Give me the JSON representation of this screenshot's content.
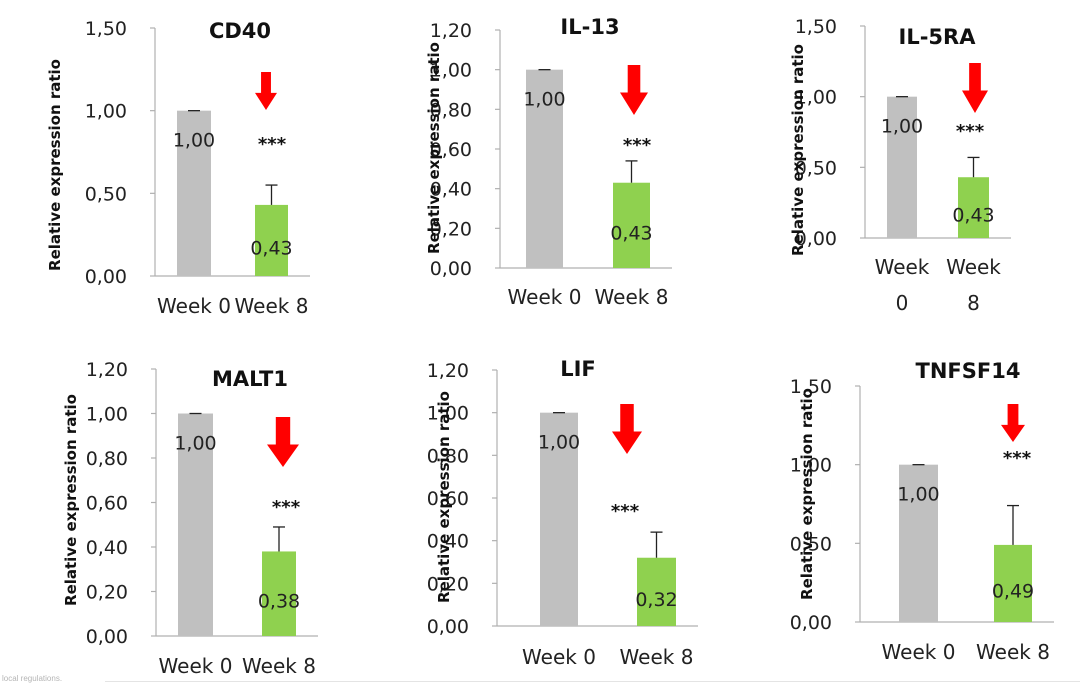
{
  "footer_text": "local regulations.",
  "colors": {
    "baseline_bar": "#c0c0c0",
    "week8_bar": "#8fd14f",
    "arrow": "#ff0000",
    "axis": "#b0b0b0"
  },
  "chart_data": [
    {
      "type": "bar",
      "title": "CD40",
      "ylabel": "Relative expression ratio",
      "categories": [
        [
          "Week 0"
        ],
        [
          "Week 8"
        ]
      ],
      "values": [
        1.0,
        0.43
      ],
      "value_labels": [
        "1,00",
        "0,43"
      ],
      "error": [
        0,
        0.12
      ],
      "ylim": [
        0,
        1.5
      ],
      "yticks": [
        "0,00",
        "0,50",
        "1,00",
        "1,50"
      ],
      "significance": "***",
      "arrow": "down"
    },
    {
      "type": "bar",
      "title": "IL-13",
      "ylabel": "Relative expression ratio",
      "categories": [
        [
          "Week 0"
        ],
        [
          "Week 8"
        ]
      ],
      "values": [
        1.0,
        0.43
      ],
      "value_labels": [
        "1,00",
        "0,43"
      ],
      "error": [
        0,
        0.11
      ],
      "ylim": [
        0,
        1.2
      ],
      "yticks": [
        "0,00",
        "0,20",
        "0,40",
        "0,60",
        "0,80",
        "1,00",
        "1,20"
      ],
      "significance": "***",
      "arrow": "down"
    },
    {
      "type": "bar",
      "title": "IL-5RA",
      "ylabel": "Relative expression ratio",
      "categories": [
        [
          "Week",
          "0"
        ],
        [
          "Week",
          "8"
        ]
      ],
      "values": [
        1.0,
        0.43
      ],
      "value_labels": [
        "1,00",
        "0,43"
      ],
      "error": [
        0,
        0.14
      ],
      "ylim": [
        0,
        1.5
      ],
      "yticks": [
        "0,00",
        "0,50",
        "1,00",
        "1,50"
      ],
      "significance": "***",
      "arrow": "down"
    },
    {
      "type": "bar",
      "title": "MALT1",
      "ylabel": "Relative expression ratio",
      "categories": [
        [
          "Week 0"
        ],
        [
          "Week 8"
        ]
      ],
      "values": [
        1.0,
        0.38
      ],
      "value_labels": [
        "1,00",
        "0,38"
      ],
      "error": [
        0,
        0.11
      ],
      "ylim": [
        0,
        1.2
      ],
      "yticks": [
        "0,00",
        "0,20",
        "0,40",
        "0,60",
        "0,80",
        "1,00",
        "1,20"
      ],
      "significance": "***",
      "arrow": "down"
    },
    {
      "type": "bar",
      "title": "LIF",
      "ylabel": "Relative expression ratio",
      "categories": [
        [
          "Week 0"
        ],
        [
          "Week 8"
        ]
      ],
      "values": [
        1.0,
        0.32
      ],
      "value_labels": [
        "1,00",
        "0,32"
      ],
      "error": [
        0,
        0.12
      ],
      "ylim": [
        0,
        1.2
      ],
      "yticks": [
        "0,00",
        "0,20",
        "0,40",
        "0,60",
        "0,80",
        "1,00",
        "1,20"
      ],
      "significance": "***",
      "arrow": "down"
    },
    {
      "type": "bar",
      "title": "TNFSF14",
      "ylabel": "Relative expression ratio",
      "categories": [
        [
          "Week 0"
        ],
        [
          "Week 8"
        ]
      ],
      "values": [
        1.0,
        0.49
      ],
      "value_labels": [
        "1,00",
        "0,49"
      ],
      "error": [
        0,
        0.25
      ],
      "ylim": [
        0,
        1.5
      ],
      "yticks": [
        "0,00",
        "0,50",
        "1,00",
        "1,50"
      ],
      "significance": "***",
      "arrow": "down"
    }
  ]
}
